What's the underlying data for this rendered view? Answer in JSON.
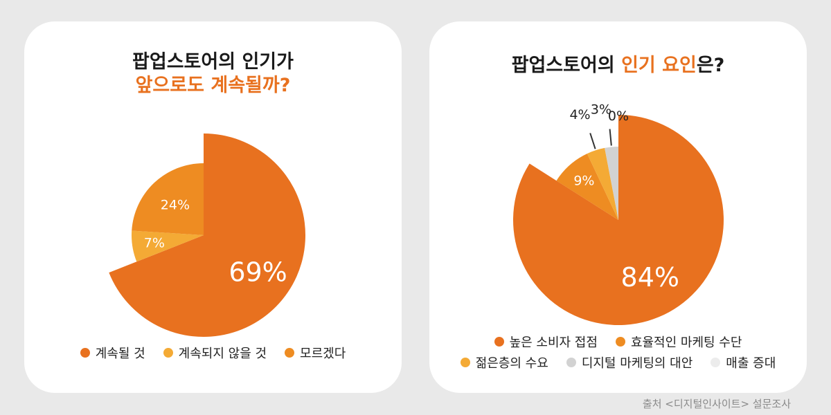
{
  "chart_data": [
    {
      "type": "pie",
      "title_line1": "팝업스토어의 인기가",
      "title_line2": "앞으로도 계속될까?",
      "slices": [
        {
          "label": "계속될 것",
          "value": 69,
          "value_label": "69%",
          "color": "#e8711f"
        },
        {
          "label": "계속되지 않을 것",
          "value": 7,
          "value_label": "7%",
          "color": "#f4aa35"
        },
        {
          "label": "모르겠다",
          "value": 24,
          "value_label": "24%",
          "color": "#ee8c22"
        }
      ],
      "legend_placement": "bottom"
    },
    {
      "type": "pie",
      "title_part1": "팝업스토어의 ",
      "title_part2": "인기 요인",
      "title_part3": "은?",
      "slices": [
        {
          "label": "높은 소비자 접점",
          "value": 84,
          "value_label": "84%",
          "color": "#e8711f"
        },
        {
          "label": "효율적인 마케팅 수단",
          "value": 9,
          "value_label": "9%",
          "color": "#ee8c22"
        },
        {
          "label": "젊은층의 수요",
          "value": 4,
          "value_label": "4%",
          "color": "#f4aa35"
        },
        {
          "label": "디지털 마케팅의 대안",
          "value": 3,
          "value_label": "3%",
          "color": "#d2d2d2"
        },
        {
          "label": "매출 증대",
          "value": 0,
          "value_label": "0%",
          "color": "#ececec"
        }
      ],
      "legend_placement": "bottom"
    }
  ],
  "source": "출처 <디지털인사이트> 설문조사"
}
